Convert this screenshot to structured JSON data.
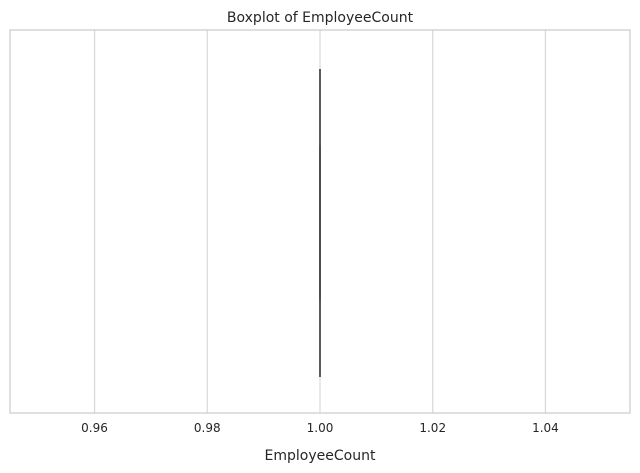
{
  "chart_data": {
    "type": "boxplot",
    "title": "Boxplot of EmployeeCount",
    "xlabel": "EmployeeCount",
    "ylabel": "",
    "xlim": [
      0.945,
      1.055
    ],
    "xticks": [
      0.96,
      0.98,
      1.0,
      1.02,
      1.04
    ],
    "xtick_labels": [
      "0.96",
      "0.98",
      "1.00",
      "1.02",
      "1.04"
    ],
    "grid": true,
    "box": {
      "min": 1.0,
      "q1": 1.0,
      "median": 1.0,
      "q3": 1.0,
      "max": 1.0
    },
    "colors": {
      "grid": "#d9d9d9",
      "spine": "#cccccc",
      "box_line": "#4d4d4d"
    }
  }
}
